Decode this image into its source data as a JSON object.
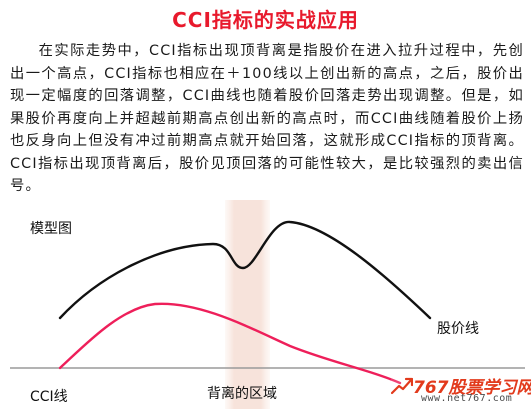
{
  "title": "CCI指标的实战应用",
  "paragraph": "在实际走势中，CCI指标出现顶背离是指股价在进入拉升过程中，先创出一个高点，CCI指标也相应在＋100线以上创出新的高点，之后，股价出现一定幅度的回落调整，CCI曲线也随着股价回落走势出现调整。但是，如果股价再度向上并超越前期高点创出新的高点时，而CCI曲线随着股价上扬也反身向上但没有冲过前期高点就开始回落，这就形成CCI指标的顶背离。CCI指标出现顶背离后，股价见顶回落的可能性较大，是比较强烈的卖出信号。",
  "diagram": {
    "model_label": "模型图",
    "price_line_label": "股价线",
    "cci_line_label": "CCI线",
    "divergence_zone_label": "背离的区域",
    "colors": {
      "price_line": "#111111",
      "cci_line": "#ee1f5a",
      "zone": "#f7e3db",
      "baseline": "#9a9a9a"
    }
  },
  "watermark": {
    "brand": "767股票学习网",
    "url": "www.net767.com"
  }
}
